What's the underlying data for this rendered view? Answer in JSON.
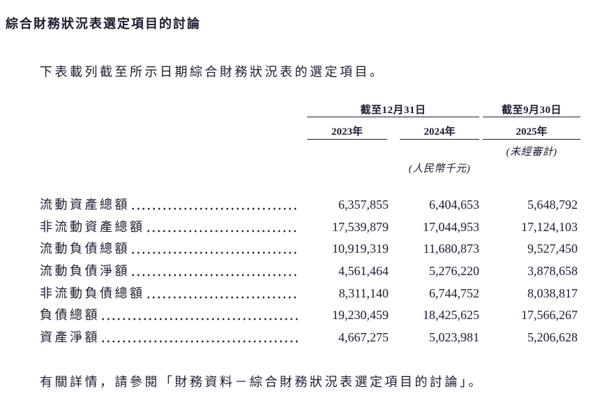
{
  "page": {
    "title": "綜合財務狀況表選定項目的討論",
    "intro": "下表載列截至所示日期綜合財務狀況表的選定項目。",
    "footer": "有關詳情，請參閱「財務資料－綜合財務狀況表選定項目的討論」。"
  },
  "table": {
    "group_headers": [
      {
        "label": "截至12月31日"
      },
      {
        "label": "截至9月30日"
      }
    ],
    "column_headers": [
      "2023年",
      "2024年",
      "2025年"
    ],
    "notes": {
      "unaudited": "(未經審計)",
      "currency_unit": "(人民幣千元)"
    },
    "rows": [
      {
        "label": "流動資產總額",
        "values": [
          "6,357,855",
          "6,404,653",
          "5,648,792"
        ]
      },
      {
        "label": "非流動資產總額",
        "values": [
          "17,539,879",
          "17,044,953",
          "17,124,103"
        ]
      },
      {
        "label": "流動負債總額",
        "values": [
          "10,919,319",
          "11,680,873",
          "9,527,450"
        ]
      },
      {
        "label": "流動負債淨額",
        "values": [
          "4,561,464",
          "5,276,220",
          "3,878,658"
        ]
      },
      {
        "label": "非流動負債總額",
        "values": [
          "8,311,140",
          "6,744,752",
          "8,038,817"
        ]
      },
      {
        "label": "負債總額",
        "values": [
          "19,230,459",
          "18,425,625",
          "17,566,267"
        ]
      },
      {
        "label": "資產淨額",
        "values": [
          "4,667,275",
          "5,023,981",
          "5,206,628"
        ]
      }
    ]
  },
  "colors": {
    "ink": "#1c1c30",
    "background": "#ffffff"
  }
}
